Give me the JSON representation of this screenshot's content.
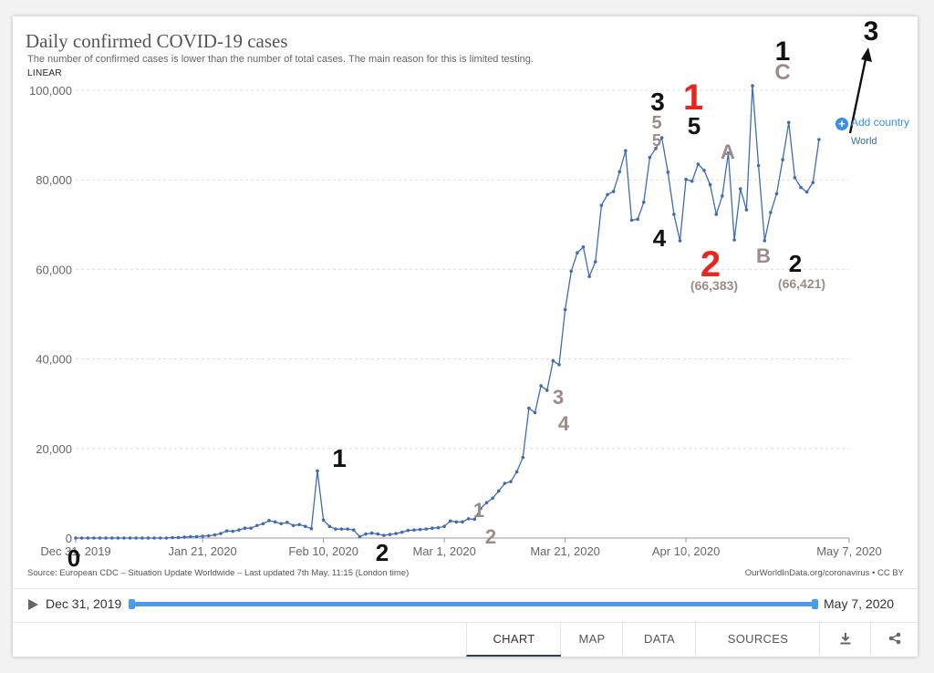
{
  "title": "Daily confirmed COVID-19 cases",
  "subtitle": "The number of confirmed cases is lower than the number of total cases. The main reason for this is limited testing.",
  "scale_label": "LINEAR",
  "footer": {
    "source": "Source: European CDC – Situation Update Worldwide – Last updated 7th May, 11:15 (London time)",
    "url": "OurWorldInData.org/coronavirus • CC BY"
  },
  "legend": {
    "add_country": "Add country",
    "series_label": "World"
  },
  "timeline": {
    "start": "Dec 31, 2019",
    "end": "May 7, 2020"
  },
  "tabs": [
    {
      "label": "CHART",
      "active": true
    },
    {
      "label": "MAP",
      "active": false
    },
    {
      "label": "DATA",
      "active": false
    },
    {
      "label": "SOURCES",
      "active": false
    }
  ],
  "icons": [
    "play-icon",
    "download-icon",
    "share-icon",
    "plus-icon"
  ],
  "colors": {
    "line": "#3f6cb3",
    "accent": "#3a8ee6",
    "annotation_black": "#111111",
    "annotation_gray": "#9c8b87",
    "annotation_red": "#e8251f"
  },
  "chart_data": {
    "type": "line",
    "x_start": "2019-12-31",
    "x_end": "2020-05-07",
    "ylim": [
      0,
      100000
    ],
    "y_ticks": [
      {
        "value": 0,
        "label": "0"
      },
      {
        "value": 20000,
        "label": "20,000"
      },
      {
        "value": 40000,
        "label": "40,000"
      },
      {
        "value": 60000,
        "label": "60,000"
      },
      {
        "value": 80000,
        "label": "80,000"
      },
      {
        "value": 100000,
        "label": "100,000"
      }
    ],
    "x_ticks": [
      {
        "date": "2019-12-31",
        "label": "Dec 31, 2019"
      },
      {
        "date": "2020-01-21",
        "label": "Jan 21, 2020"
      },
      {
        "date": "2020-02-10",
        "label": "Feb 10, 2020"
      },
      {
        "date": "2020-03-01",
        "label": "Mar 1, 2020"
      },
      {
        "date": "2020-03-21",
        "label": "Mar 21, 2020"
      },
      {
        "date": "2020-04-10",
        "label": "Apr 10, 2020"
      },
      {
        "date": "2020-05-07",
        "label": "May 7, 2020"
      }
    ],
    "grid": true,
    "series": [
      {
        "name": "World",
        "points": [
          [
            "2019-12-31",
            0
          ],
          [
            "2020-01-01",
            0
          ],
          [
            "2020-01-02",
            0
          ],
          [
            "2020-01-03",
            0
          ],
          [
            "2020-01-04",
            0
          ],
          [
            "2020-01-05",
            0
          ],
          [
            "2020-01-06",
            0
          ],
          [
            "2020-01-07",
            0
          ],
          [
            "2020-01-08",
            0
          ],
          [
            "2020-01-09",
            0
          ],
          [
            "2020-01-10",
            0
          ],
          [
            "2020-01-11",
            0
          ],
          [
            "2020-01-12",
            0
          ],
          [
            "2020-01-13",
            0
          ],
          [
            "2020-01-14",
            0
          ],
          [
            "2020-01-15",
            0
          ],
          [
            "2020-01-16",
            100
          ],
          [
            "2020-01-17",
            100
          ],
          [
            "2020-01-18",
            200
          ],
          [
            "2020-01-19",
            300
          ],
          [
            "2020-01-20",
            300
          ],
          [
            "2020-01-21",
            400
          ],
          [
            "2020-01-22",
            500
          ],
          [
            "2020-01-23",
            700
          ],
          [
            "2020-01-24",
            1000
          ],
          [
            "2020-01-25",
            1600
          ],
          [
            "2020-01-26",
            1500
          ],
          [
            "2020-01-27",
            1800
          ],
          [
            "2020-01-28",
            2200
          ],
          [
            "2020-01-29",
            2200
          ],
          [
            "2020-01-30",
            2800
          ],
          [
            "2020-01-31",
            3200
          ],
          [
            "2020-02-01",
            3900
          ],
          [
            "2020-02-02",
            3600
          ],
          [
            "2020-02-03",
            3200
          ],
          [
            "2020-02-04",
            3500
          ],
          [
            "2020-02-05",
            2800
          ],
          [
            "2020-02-06",
            3000
          ],
          [
            "2020-02-07",
            2600
          ],
          [
            "2020-02-08",
            2100
          ],
          [
            "2020-02-09",
            15000
          ],
          [
            "2020-02-10",
            4000
          ],
          [
            "2020-02-11",
            2600
          ],
          [
            "2020-02-12",
            2000
          ],
          [
            "2020-02-13",
            2000
          ],
          [
            "2020-02-14",
            2000
          ],
          [
            "2020-02-15",
            1800
          ],
          [
            "2020-02-16",
            300
          ],
          [
            "2020-02-17",
            900
          ],
          [
            "2020-02-18",
            1100
          ],
          [
            "2020-02-19",
            900
          ],
          [
            "2020-02-20",
            600
          ],
          [
            "2020-02-21",
            800
          ],
          [
            "2020-02-22",
            1000
          ],
          [
            "2020-02-23",
            1300
          ],
          [
            "2020-02-24",
            1700
          ],
          [
            "2020-02-25",
            1800
          ],
          [
            "2020-02-26",
            1900
          ],
          [
            "2020-02-27",
            2000
          ],
          [
            "2020-02-28",
            2200
          ],
          [
            "2020-02-29",
            2300
          ],
          [
            "2020-03-01",
            2600
          ],
          [
            "2020-03-02",
            3800
          ],
          [
            "2020-03-03",
            3600
          ],
          [
            "2020-03-04",
            3600
          ],
          [
            "2020-03-05",
            4300
          ],
          [
            "2020-03-06",
            4200
          ],
          [
            "2020-03-07",
            6600
          ],
          [
            "2020-03-08",
            7900
          ],
          [
            "2020-03-09",
            8900
          ],
          [
            "2020-03-10",
            10500
          ],
          [
            "2020-03-11",
            12200
          ],
          [
            "2020-03-12",
            12600
          ],
          [
            "2020-03-13",
            14800
          ],
          [
            "2020-03-14",
            18000
          ],
          [
            "2020-03-15",
            29000
          ],
          [
            "2020-03-16",
            28000
          ],
          [
            "2020-03-17",
            34000
          ],
          [
            "2020-03-18",
            33000
          ],
          [
            "2020-03-19",
            39600
          ],
          [
            "2020-03-20",
            38700
          ],
          [
            "2020-03-21",
            51000
          ],
          [
            "2020-03-22",
            59600
          ],
          [
            "2020-03-23",
            63700
          ],
          [
            "2020-03-24",
            65000
          ],
          [
            "2020-03-25",
            58400
          ],
          [
            "2020-03-26",
            61700
          ],
          [
            "2020-03-27",
            74300
          ],
          [
            "2020-03-28",
            76700
          ],
          [
            "2020-03-29",
            77400
          ],
          [
            "2020-03-30",
            81800
          ],
          [
            "2020-03-31",
            86500
          ],
          [
            "2020-04-01",
            71000
          ],
          [
            "2020-04-02",
            71200
          ],
          [
            "2020-04-03",
            75000
          ],
          [
            "2020-04-04",
            85000
          ],
          [
            "2020-04-05",
            87000
          ],
          [
            "2020-04-06",
            89400
          ],
          [
            "2020-04-07",
            81700
          ],
          [
            "2020-04-08",
            72300
          ],
          [
            "2020-04-09",
            66383
          ],
          [
            "2020-04-10",
            80100
          ],
          [
            "2020-04-11",
            79700
          ],
          [
            "2020-04-12",
            83500
          ],
          [
            "2020-04-13",
            82100
          ],
          [
            "2020-04-14",
            78900
          ],
          [
            "2020-04-15",
            72300
          ],
          [
            "2020-04-16",
            76400
          ],
          [
            "2020-04-17",
            86000
          ],
          [
            "2020-04-18",
            66600
          ],
          [
            "2020-04-19",
            78000
          ],
          [
            "2020-04-20",
            73300
          ],
          [
            "2020-04-21",
            101000
          ],
          [
            "2020-04-22",
            83200
          ],
          [
            "2020-04-23",
            66421
          ],
          [
            "2020-04-24",
            72700
          ],
          [
            "2020-04-25",
            76900
          ],
          [
            "2020-04-26",
            84500
          ],
          [
            "2020-04-27",
            92800
          ],
          [
            "2020-04-28",
            80500
          ],
          [
            "2020-04-29",
            78300
          ],
          [
            "2020-04-30",
            77300
          ],
          [
            "2020-05-01",
            79400
          ],
          [
            "2020-05-02",
            89000
          ]
        ]
      }
    ],
    "annotations": [
      {
        "text": "0",
        "color": "black"
      },
      {
        "text": "1",
        "color": "black"
      },
      {
        "text": "2",
        "color": "black"
      },
      {
        "text": "1",
        "color": "gray"
      },
      {
        "text": "2",
        "color": "gray"
      },
      {
        "text": "3",
        "color": "gray"
      },
      {
        "text": "4",
        "color": "gray"
      },
      {
        "text": "3",
        "color": "black"
      },
      {
        "text": "5",
        "color": "gray"
      },
      {
        "text": "5",
        "color": "gray"
      },
      {
        "text": "4",
        "color": "black"
      },
      {
        "text": "1",
        "color": "red"
      },
      {
        "text": "5",
        "color": "black"
      },
      {
        "text": "2",
        "color": "red"
      },
      {
        "text": "(66,383)",
        "color": "gray"
      },
      {
        "text": "A",
        "color": "gray"
      },
      {
        "text": "B",
        "color": "gray"
      },
      {
        "text": "1",
        "color": "black"
      },
      {
        "text": "C",
        "color": "gray"
      },
      {
        "text": "2",
        "color": "black"
      },
      {
        "text": "(66,421)",
        "color": "gray"
      },
      {
        "text": "3",
        "color": "black"
      }
    ]
  }
}
